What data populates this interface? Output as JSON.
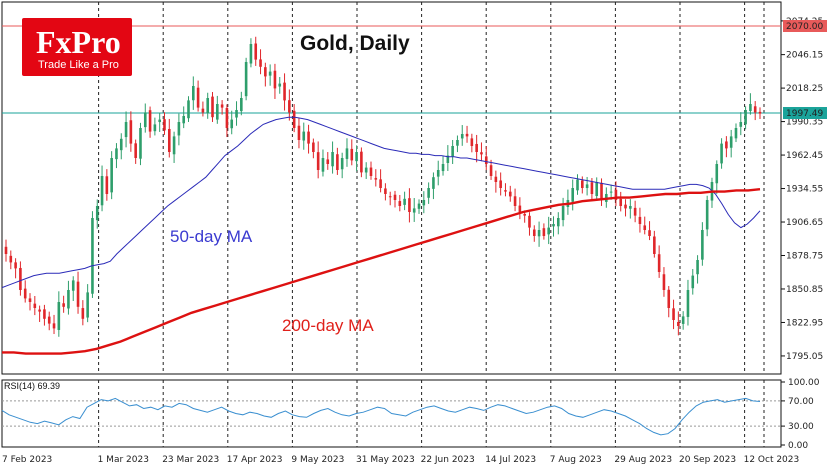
{
  "header": {
    "title": "Gold, Daily",
    "logo_name": "FxPro",
    "logo_tagline": "Trade Like a Pro"
  },
  "labels": {
    "ma50": "50-day MA",
    "ma200": "200-day MA",
    "rsi": "RSI(14) 69.39"
  },
  "colors": {
    "bull": "#2e9e6b",
    "bear": "#e0262a",
    "ma50": "#2b2bb8",
    "ma200": "#dd1111",
    "rsi": "#3a8fd0",
    "resistance": "#e85a5a",
    "current": "#1aa39a",
    "brand": "#e30613"
  },
  "chart_data": [
    {
      "type": "candlestick",
      "title": "Gold, Daily",
      "price_ticks": [
        "2074.25",
        "2046.15",
        "2018.25",
        "1990.35",
        "1962.45",
        "1934.55",
        "1906.65",
        "1878.75",
        "1850.85",
        "1822.95",
        "1795.05"
      ],
      "ylim": [
        1780,
        2080
      ],
      "level_line": {
        "value": 2070.0,
        "label": "2070.00"
      },
      "current_price": {
        "value": 1997.49,
        "label": "1997.49"
      },
      "x_dates": [
        "7 Feb 2023",
        "1 Mar 2023",
        "23 Mar 2023",
        "17 Apr 2023",
        "9 May 2023",
        "31 May 2023",
        "22 Jun 2023",
        "14 Jul 2023",
        "7 Aug 2023",
        "29 Aug 2023",
        "20 Sep 2023",
        "12 Oct 2023"
      ],
      "close_series": [
        1880,
        1873,
        1868,
        1850,
        1843,
        1840,
        1835,
        1832,
        1826,
        1822,
        1818,
        1840,
        1836,
        1850,
        1858,
        1836,
        1826,
        1848,
        1910,
        1920,
        1945,
        1930,
        1960,
        1968,
        1976,
        1990,
        1972,
        1960,
        1985,
        1998,
        1982,
        1988,
        1992,
        1983,
        1965,
        1978,
        1990,
        1995,
        2008,
        2020,
        2002,
        1998,
        2010,
        1994,
        2005,
        2002,
        1985,
        1992,
        2000,
        2010,
        2040,
        2055,
        2042,
        2036,
        2028,
        2032,
        2018,
        2022,
        2008,
        1998,
        1985,
        1975,
        1982,
        1972,
        1965,
        1950,
        1960,
        1955,
        1965,
        1950,
        1960,
        1968,
        1958,
        1965,
        1948,
        1952,
        1945,
        1942,
        1935,
        1930,
        1928,
        1925,
        1920,
        1926,
        1915,
        1918,
        1922,
        1925,
        1935,
        1944,
        1950,
        1955,
        1962,
        1970,
        1975,
        1980,
        1978,
        1970,
        1965,
        1963,
        1955,
        1945,
        1940,
        1935,
        1932,
        1928,
        1920,
        1915,
        1912,
        1902,
        1895,
        1900,
        1895,
        1902,
        1905,
        1910,
        1920,
        1925,
        1935,
        1942,
        1935,
        1938,
        1930,
        1940,
        1925,
        1930,
        1932,
        1925,
        1920,
        1918,
        1920,
        1912,
        1905,
        1900,
        1895,
        1880,
        1865,
        1850,
        1835,
        1825,
        1820,
        1828,
        1850,
        1862,
        1875,
        1900,
        1925,
        1940,
        1955,
        1972,
        1968,
        1978,
        1985,
        1990,
        2000,
        2005,
        1998,
        1997
      ],
      "ma50_series": [
        1852,
        1854,
        1856,
        1858,
        1860,
        1862,
        1863,
        1864,
        1864,
        1864,
        1865,
        1866,
        1867,
        1868,
        1870,
        1871,
        1872,
        1874,
        1880,
        1885,
        1890,
        1895,
        1900,
        1905,
        1910,
        1915,
        1920,
        1924,
        1928,
        1932,
        1936,
        1940,
        1944,
        1950,
        1956,
        1962,
        1966,
        1970,
        1975,
        1980,
        1984,
        1988,
        1990,
        1992,
        1993,
        1994,
        1994,
        1993,
        1992,
        1990,
        1988,
        1986,
        1984,
        1982,
        1980,
        1978,
        1976,
        1974,
        1972,
        1970,
        1968,
        1967,
        1966,
        1965,
        1964,
        1964,
        1963,
        1963,
        1962,
        1962,
        1961,
        1961,
        1960,
        1960,
        1959,
        1958,
        1957,
        1956,
        1955,
        1954,
        1953,
        1952,
        1951,
        1950,
        1949,
        1948,
        1947,
        1946,
        1945,
        1944,
        1943,
        1942,
        1941,
        1940,
        1939,
        1938,
        1937,
        1936,
        1935,
        1934,
        1934,
        1934,
        1934,
        1934,
        1934,
        1935,
        1936,
        1937,
        1938,
        1938,
        1937,
        1935,
        1930,
        1922,
        1913,
        1906,
        1902,
        1905,
        1910,
        1916
      ],
      "ma200_series": [
        1798,
        1798,
        1797,
        1797,
        1797,
        1797,
        1798,
        1799,
        1801,
        1804,
        1807,
        1811,
        1815,
        1819,
        1823,
        1827,
        1831,
        1834,
        1837,
        1840,
        1843,
        1846,
        1849,
        1852,
        1855,
        1858,
        1861,
        1864,
        1867,
        1870,
        1873,
        1876,
        1879,
        1882,
        1885,
        1888,
        1891,
        1894,
        1897,
        1900,
        1903,
        1906,
        1909,
        1912,
        1915,
        1917,
        1919,
        1921,
        1922,
        1924,
        1925,
        1926,
        1927,
        1927,
        1928,
        1929,
        1930,
        1930,
        1931,
        1931,
        1932,
        1932,
        1933,
        1933,
        1934
      ],
      "rsi": {
        "ticks": [
          "100.00",
          "70.00",
          "30.00",
          "0.00"
        ],
        "ylim": [
          0,
          100
        ],
        "guides": [
          70,
          30
        ],
        "last": 69.39,
        "series": [
          55,
          48,
          44,
          40,
          36,
          34,
          38,
          35,
          32,
          40,
          45,
          42,
          60,
          66,
          72,
          70,
          74,
          68,
          62,
          64,
          58,
          60,
          56,
          62,
          60,
          66,
          64,
          58,
          55,
          52,
          56,
          60,
          54,
          50,
          48,
          52,
          50,
          46,
          44,
          50,
          54,
          48,
          45,
          44,
          50,
          55,
          58,
          52,
          48,
          46,
          50,
          52,
          56,
          60,
          58,
          50,
          48,
          46,
          52,
          56,
          60,
          62,
          58,
          54,
          52,
          56,
          60,
          58,
          55,
          60,
          64,
          62,
          58,
          54,
          50,
          52,
          56,
          60,
          62,
          58,
          50,
          46,
          44,
          48,
          52,
          56,
          54,
          50,
          46,
          40,
          34,
          26,
          20,
          16,
          18,
          26,
          40,
          52,
          62,
          68,
          70,
          72,
          68,
          70,
          72,
          74,
          70,
          69
        ]
      }
    }
  ]
}
